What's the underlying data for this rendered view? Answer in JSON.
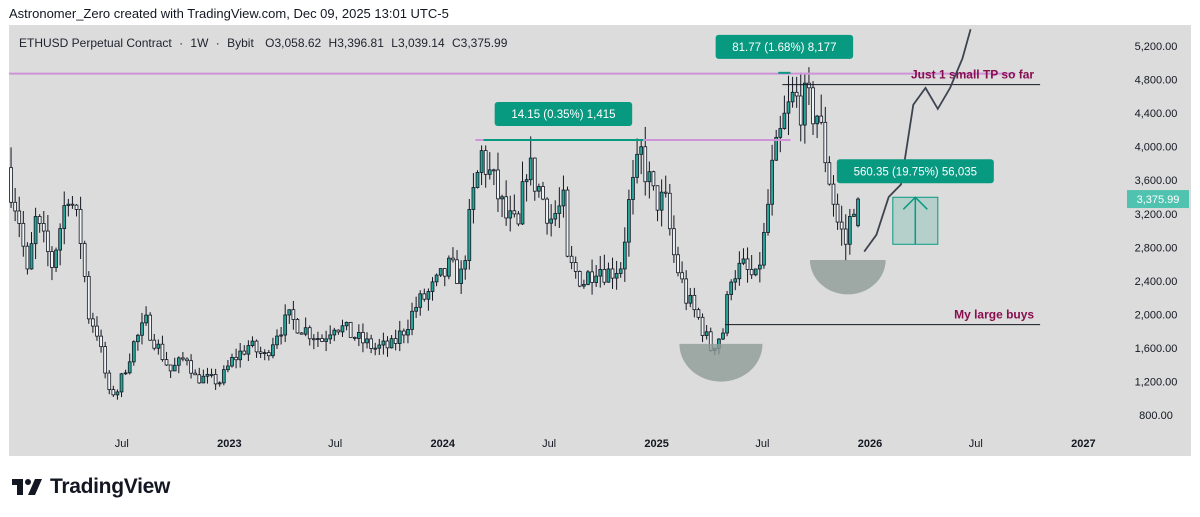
{
  "header": {
    "text": "Astronomer_Zero created with TradingView.com, Dec 09, 2025 13:01 UTC-5"
  },
  "symbol": {
    "name": "ETHUSD Perpetual Contract",
    "interval": "1W",
    "exchange": "Bybit",
    "open": "O3,058.62",
    "high": "H3,396.81",
    "low": "L3,039.14",
    "close": "C3,375.99"
  },
  "footer": {
    "brand": "TradingView"
  },
  "colors": {
    "panel": "#dcdcdc",
    "up": "#26a69a",
    "down": "#131722",
    "accent": "#089981",
    "purple_line": "#ce93d8",
    "annotation_text": "#880e4f",
    "bowl": "#8e9c98"
  },
  "chart_data": {
    "type": "candlestick",
    "symbol": "ETHUSD Perpetual Contract",
    "interval": "1W",
    "exchange": "Bybit",
    "ylim": [
      600,
      5450
    ],
    "y_ticks": [
      "800.00",
      "1,200.00",
      "1,600.00",
      "2,000.00",
      "2,400.00",
      "2,800.00",
      "3,200.00",
      "3,600.00",
      "4,000.00",
      "4,400.00",
      "4,800.00",
      "5,200.00"
    ],
    "y_tick_values": [
      800,
      1200,
      1600,
      2000,
      2400,
      2800,
      3200,
      3600,
      4000,
      4400,
      4800,
      5200
    ],
    "x_ticks": [
      "Jul",
      "2023",
      "Jul",
      "2024",
      "Jul",
      "2025",
      "Jul",
      "2026",
      "Jul",
      "2027"
    ],
    "x_tick_dates": [
      "2022-07-01",
      "2023-01-01",
      "2023-07-01",
      "2024-01-01",
      "2024-07-01",
      "2025-01-01",
      "2025-07-01",
      "2026-01-01",
      "2026-07-01",
      "2027-01-01"
    ],
    "xlim": [
      "2021-12-20",
      "2027-02-07"
    ],
    "current_price": {
      "label": "3,375.99",
      "value": 3375.99
    },
    "price_path": [
      [
        "2021-12-20",
        3750
      ],
      [
        "2022-01-10",
        3150
      ],
      [
        "2022-01-24",
        2450
      ],
      [
        "2022-02-07",
        3100
      ],
      [
        "2022-03-07",
        2600
      ],
      [
        "2022-04-04",
        3500
      ],
      [
        "2022-04-25",
        2900
      ],
      [
        "2022-05-09",
        2000
      ],
      [
        "2022-05-23",
        1800
      ],
      [
        "2022-06-13",
        1050
      ],
      [
        "2022-06-27",
        1100
      ],
      [
        "2022-07-25",
        1650
      ],
      [
        "2022-08-15",
        1900
      ],
      [
        "2022-09-05",
        1600
      ],
      [
        "2022-09-26",
        1330
      ],
      [
        "2022-10-24",
        1500
      ],
      [
        "2022-11-07",
        1250
      ],
      [
        "2022-11-28",
        1230
      ],
      [
        "2022-12-19",
        1200
      ],
      [
        "2023-01-09",
        1450
      ],
      [
        "2023-02-06",
        1630
      ],
      [
        "2023-03-06",
        1500
      ],
      [
        "2023-03-27",
        1800
      ],
      [
        "2023-04-17",
        1950
      ],
      [
        "2023-05-15",
        1820
      ],
      [
        "2023-06-12",
        1700
      ],
      [
        "2023-07-03",
        1900
      ],
      [
        "2023-08-14",
        1700
      ],
      [
        "2023-09-11",
        1600
      ],
      [
        "2023-10-09",
        1620
      ],
      [
        "2023-10-30",
        1820
      ],
      [
        "2023-11-20",
        2100
      ],
      [
        "2023-12-18",
        2300
      ],
      [
        "2024-01-15",
        2550
      ],
      [
        "2024-02-05",
        2450
      ],
      [
        "2024-02-26",
        3400
      ],
      [
        "2024-03-11",
        3900
      ],
      [
        "2024-04-01",
        3550
      ],
      [
        "2024-04-22",
        3150
      ],
      [
        "2024-05-13",
        3000
      ],
      [
        "2024-05-27",
        3800
      ],
      [
        "2024-06-17",
        3500
      ],
      [
        "2024-07-08",
        3150
      ],
      [
        "2024-07-29",
        3300
      ],
      [
        "2024-08-05",
        2600
      ],
      [
        "2024-09-02",
        2400
      ],
      [
        "2024-09-23",
        2600
      ],
      [
        "2024-10-14",
        2500
      ],
      [
        "2024-11-04",
        2600
      ],
      [
        "2024-11-18",
        3300
      ],
      [
        "2024-12-09",
        3900
      ],
      [
        "2024-12-30",
        3400
      ],
      [
        "2025-01-20",
        3300
      ],
      [
        "2025-02-03",
        2700
      ],
      [
        "2025-02-24",
        2200
      ],
      [
        "2025-03-17",
        1950
      ],
      [
        "2025-04-07",
        1600
      ],
      [
        "2025-04-28",
        1800
      ],
      [
        "2025-05-12",
        2500
      ],
      [
        "2025-06-02",
        2550
      ],
      [
        "2025-06-23",
        2400
      ],
      [
        "2025-07-07",
        2900
      ],
      [
        "2025-07-21",
        3700
      ],
      [
        "2025-08-11",
        4300
      ],
      [
        "2025-08-25",
        4550
      ],
      [
        "2025-09-15",
        4500
      ],
      [
        "2025-10-06",
        4400
      ],
      [
        "2025-10-20",
        3900
      ],
      [
        "2025-11-10",
        3100
      ],
      [
        "2025-11-24",
        2850
      ],
      [
        "2025-12-08",
        3376
      ]
    ],
    "ohlc_last": {
      "open": 3058.62,
      "high": 3396.81,
      "low": 3039.14,
      "close": 3375.99
    },
    "projection_path": [
      [
        "2025-12-22",
        2750
      ],
      [
        "2026-01-12",
        2950
      ],
      [
        "2026-02-02",
        3400
      ],
      [
        "2026-02-23",
        3550
      ],
      [
        "2026-03-16",
        4500
      ],
      [
        "2026-04-06",
        4700
      ],
      [
        "2026-04-27",
        4450
      ],
      [
        "2026-05-18",
        4700
      ],
      [
        "2026-06-08",
        5050
      ],
      [
        "2026-06-22",
        5400
      ]
    ],
    "annotations": [
      {
        "type": "measure",
        "label": "14.15 (0.35%) 1,415",
        "from": [
          "2024-03-11",
          4080
        ],
        "to": [
          "2024-12-09",
          4080
        ]
      },
      {
        "type": "measure",
        "label": "81.77 (1.68%) 8,177",
        "from": [
          "2025-07-28",
          4880
        ],
        "to": [
          "2025-08-18",
          4880
        ]
      },
      {
        "type": "measure",
        "label": "560.35 (19.75%) 56,035",
        "from": [
          "2026-02-09",
          2837
        ],
        "to": [
          "2026-04-27",
          3397
        ]
      },
      {
        "type": "hline",
        "color": "purple",
        "value": 4870,
        "from": "2021-12-20",
        "to": "2026-09-07"
      },
      {
        "type": "hline",
        "color": "purple",
        "value": 4080,
        "from": "2024-02-26",
        "to": "2025-08-18"
      },
      {
        "type": "hline",
        "color": "dark",
        "value": 4740,
        "from": "2025-08-04",
        "to": "2026-10-19",
        "label": "Just 1 small TP so far"
      },
      {
        "type": "hline",
        "color": "dark",
        "value": 1880,
        "from": "2025-04-28",
        "to": "2026-10-19",
        "label": "My large buys"
      },
      {
        "type": "bowl",
        "center": [
          "2025-04-21",
          1650
        ],
        "depth_to": 1200
      },
      {
        "type": "bowl",
        "center": [
          "2025-11-24",
          2650
        ],
        "depth_to": 2240
      }
    ]
  }
}
